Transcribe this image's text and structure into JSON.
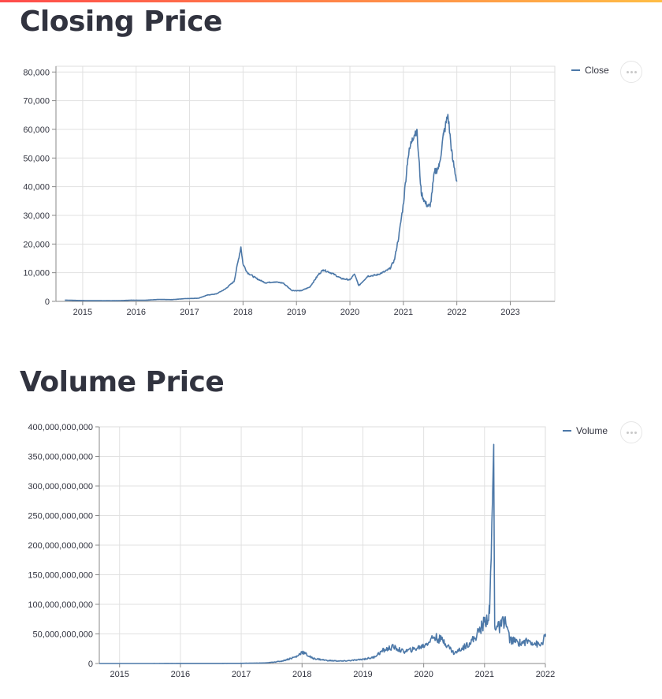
{
  "page": {
    "heading_closing": "Closing Price",
    "heading_volume": "Volume Price"
  },
  "colors": {
    "series": "#4c78a8",
    "grid": "#dddddd",
    "axis": "#888888",
    "accent": "#ff4b4b"
  },
  "icons": {
    "chart_menu": "more-horizontal-icon"
  },
  "chart_data": [
    {
      "type": "line",
      "title": "",
      "xlabel": "",
      "ylabel": "",
      "x_ticks": [
        "2015",
        "2016",
        "2017",
        "2018",
        "2019",
        "2020",
        "2021",
        "2022",
        "2023"
      ],
      "y_ticks": [
        0,
        10000,
        20000,
        30000,
        40000,
        50000,
        60000,
        70000,
        80000
      ],
      "y_tick_labels": [
        "0",
        "10,000",
        "20,000",
        "30,000",
        "40,000",
        "50,000",
        "60,000",
        "70,000",
        "80,000"
      ],
      "xlim": [
        "2014-07",
        "2023-11"
      ],
      "ylim": [
        0,
        82000
      ],
      "grid": true,
      "legend_position": "top-right",
      "series": [
        {
          "name": "Close",
          "x": [
            "2014-09",
            "2014-12",
            "2015-03",
            "2015-06",
            "2015-09",
            "2015-12",
            "2016-03",
            "2016-06",
            "2016-09",
            "2016-12",
            "2017-03",
            "2017-05",
            "2017-07",
            "2017-09",
            "2017-11",
            "2017-12-17",
            "2018-01",
            "2018-02",
            "2018-04",
            "2018-06",
            "2018-08",
            "2018-10",
            "2018-12",
            "2019-02",
            "2019-04",
            "2019-06",
            "2019-07",
            "2019-09",
            "2019-11",
            "2020-01",
            "2020-02",
            "2020-03",
            "2020-05",
            "2020-07",
            "2020-09",
            "2020-10",
            "2020-11",
            "2020-12",
            "2021-01",
            "2021-02",
            "2021-03",
            "2021-04",
            "2021-05",
            "2021-06",
            "2021-07",
            "2021-08",
            "2021-09",
            "2021-10",
            "2021-11",
            "2021-12",
            "2022-01"
          ],
          "y": [
            450,
            320,
            250,
            230,
            240,
            430,
            410,
            670,
            610,
            960,
            1100,
            2200,
            2600,
            4300,
            7000,
            19000,
            13000,
            10000,
            8000,
            6500,
            6800,
            6400,
            3800,
            3700,
            5000,
            9500,
            11000,
            9800,
            8000,
            7500,
            9500,
            5500,
            8800,
            9200,
            10500,
            11500,
            14500,
            23000,
            34000,
            50000,
            57000,
            60000,
            38000,
            34000,
            33000,
            45000,
            47000,
            58000,
            65000,
            50000,
            42000
          ]
        }
      ]
    },
    {
      "type": "line",
      "title": "",
      "xlabel": "",
      "ylabel": "",
      "x_ticks": [
        "2015",
        "2016",
        "2017",
        "2018",
        "2019",
        "2020",
        "2021",
        "2022"
      ],
      "y_ticks": [
        0,
        50000000000,
        100000000000,
        150000000000,
        200000000000,
        250000000000,
        300000000000,
        350000000000,
        400000000000
      ],
      "y_tick_labels": [
        "0",
        "50,000,000,000",
        "100,000,000,000",
        "150,000,000,000",
        "200,000,000,000",
        "250,000,000,000",
        "300,000,000,000",
        "350,000,000,000",
        "400,000,000,000"
      ],
      "xlim": [
        "2014-09",
        "2022-01"
      ],
      "ylim": [
        0,
        400000000000
      ],
      "grid": true,
      "legend_position": "top-right",
      "series": [
        {
          "name": "Volume",
          "x": [
            "2014-09",
            "2015-06",
            "2016-06",
            "2017-01",
            "2017-06",
            "2017-09",
            "2017-12",
            "2018-01",
            "2018-03",
            "2018-06",
            "2018-09",
            "2018-12",
            "2019-03",
            "2019-05",
            "2019-07",
            "2019-09",
            "2019-11",
            "2020-01",
            "2020-03",
            "2020-05",
            "2020-07",
            "2020-09",
            "2020-11",
            "2021-01",
            "2021-02",
            "2021-02-26",
            "2021-03",
            "2021-04",
            "2021-05",
            "2021-06",
            "2021-08",
            "2021-10",
            "2021-12",
            "2022-01"
          ],
          "y": [
            30000000,
            50000000,
            100000000,
            300000000,
            1000000000,
            4000000000,
            12000000000,
            20000000000,
            9000000000,
            5000000000,
            4000000000,
            6000000000,
            10000000000,
            22000000000,
            28000000000,
            20000000000,
            24000000000,
            30000000000,
            45000000000,
            38000000000,
            17000000000,
            28000000000,
            42000000000,
            70000000000,
            85000000000,
            350000000000,
            65000000000,
            60000000000,
            75000000000,
            40000000000,
            35000000000,
            38000000000,
            30000000000,
            45000000000
          ]
        }
      ]
    }
  ]
}
